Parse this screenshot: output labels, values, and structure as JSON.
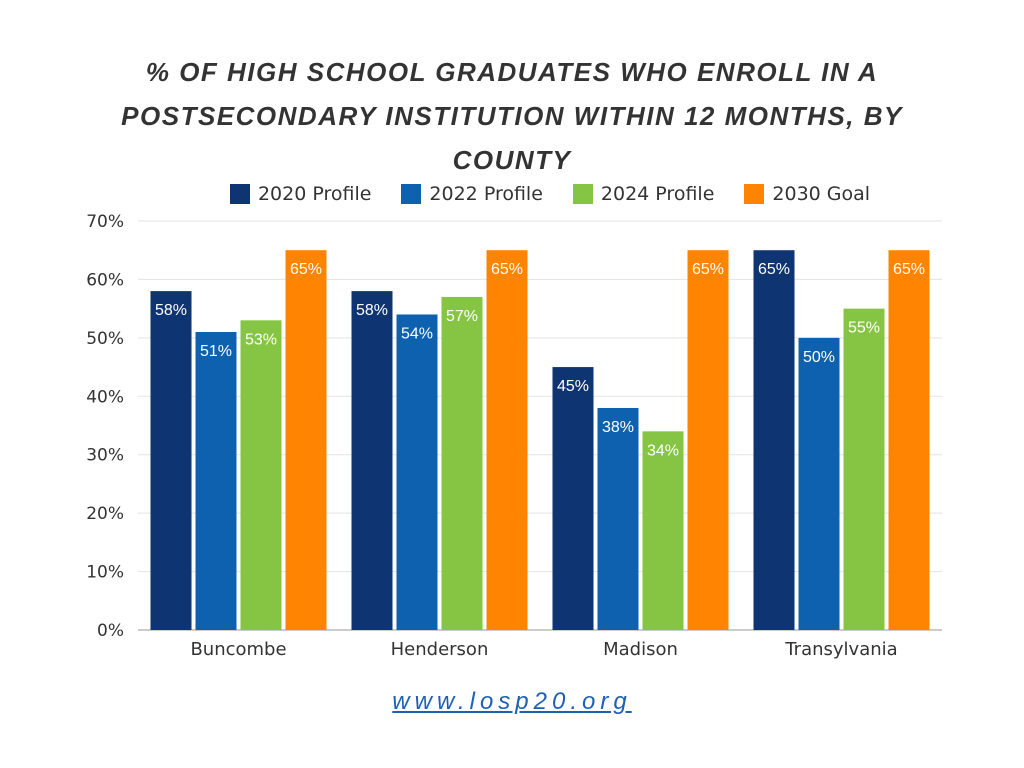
{
  "chart_data": {
    "type": "bar",
    "title": "% OF HIGH SCHOOL GRADUATES WHO ENROLL IN A POSTSECONDARY INSTITUTION WITHIN 12 MONTHS, BY COUNTY",
    "categories": [
      "Buncombe",
      "Henderson",
      "Madison",
      "Transylvania"
    ],
    "series": [
      {
        "name": "2020 Profile",
        "color": "#0e3472",
        "values": [
          58,
          58,
          45,
          65
        ]
      },
      {
        "name": "2022 Profile",
        "color": "#0d61af",
        "values": [
          51,
          54,
          38,
          50
        ]
      },
      {
        "name": "2024 Profile",
        "color": "#86c543",
        "values": [
          53,
          57,
          34,
          55
        ]
      },
      {
        "name": "2030 Goal",
        "color": "#ff8402",
        "values": [
          65,
          65,
          65,
          65
        ]
      }
    ],
    "ylim": [
      0,
      70
    ],
    "yticks": [
      "0%",
      "10%",
      "20%",
      "30%",
      "40%",
      "50%",
      "60%",
      "70%"
    ],
    "value_suffix": "%",
    "grid": true,
    "legend_position": "top"
  },
  "source_text": "www.losp20.org"
}
